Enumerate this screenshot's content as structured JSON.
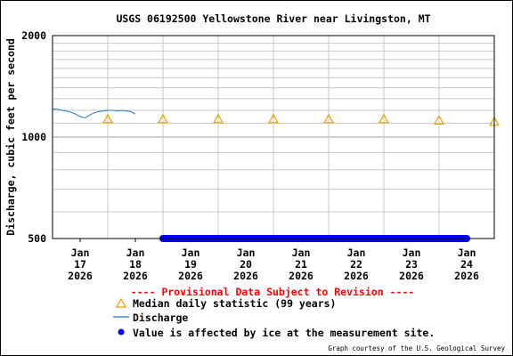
{
  "chart_data": {
    "type": "line",
    "title": "USGS 06192500 Yellowstone River near Livingston, MT",
    "xlabel": "",
    "ylabel": "Discharge, cubic feet per second",
    "yscale": "log",
    "ylim": [
      500,
      2000
    ],
    "yticks": [
      {
        "value": 500,
        "label": "500"
      },
      {
        "value": 1000,
        "label": "1000"
      },
      {
        "value": 2000,
        "label": "2000"
      }
    ],
    "xlim": [
      "2026-01-16 12:00",
      "2026-01-24 12:00"
    ],
    "xticks": [
      {
        "lines": [
          "Jan",
          "17",
          "2026"
        ]
      },
      {
        "lines": [
          "Jan",
          "18",
          "2026"
        ]
      },
      {
        "lines": [
          "Jan",
          "19",
          "2026"
        ]
      },
      {
        "lines": [
          "Jan",
          "20",
          "2026"
        ]
      },
      {
        "lines": [
          "Jan",
          "21",
          "2026"
        ]
      },
      {
        "lines": [
          "Jan",
          "22",
          "2026"
        ]
      },
      {
        "lines": [
          "Jan",
          "23",
          "2026"
        ]
      },
      {
        "lines": [
          "Jan",
          "24",
          "2026"
        ]
      }
    ],
    "grid": true,
    "series": [
      {
        "name": "Median daily statistic (99 years)",
        "kind": "marker-triangle",
        "color": "#e8a000",
        "points": [
          {
            "x": "2026-01-17",
            "y": 1130
          },
          {
            "x": "2026-01-18",
            "y": 1130
          },
          {
            "x": "2026-01-19",
            "y": 1130
          },
          {
            "x": "2026-01-20",
            "y": 1130
          },
          {
            "x": "2026-01-21",
            "y": 1130
          },
          {
            "x": "2026-01-22",
            "y": 1130
          },
          {
            "x": "2026-01-23",
            "y": 1120
          },
          {
            "x": "2026-01-24",
            "y": 1110
          }
        ]
      },
      {
        "name": "Discharge",
        "kind": "line",
        "color": "#1f78c8",
        "points": [
          {
            "x": "2026-01-16 12:00",
            "y": 1210
          },
          {
            "x": "2026-01-16 14:00",
            "y": 1210
          },
          {
            "x": "2026-01-16 16:00",
            "y": 1200
          },
          {
            "x": "2026-01-16 18:00",
            "y": 1195
          },
          {
            "x": "2026-01-16 20:00",
            "y": 1185
          },
          {
            "x": "2026-01-16 22:00",
            "y": 1170
          },
          {
            "x": "2026-01-17 00:00",
            "y": 1150
          },
          {
            "x": "2026-01-17 02:00",
            "y": 1140
          },
          {
            "x": "2026-01-17 04:00",
            "y": 1160
          },
          {
            "x": "2026-01-17 06:00",
            "y": 1180
          },
          {
            "x": "2026-01-17 08:00",
            "y": 1190
          },
          {
            "x": "2026-01-17 10:00",
            "y": 1195
          },
          {
            "x": "2026-01-17 12:00",
            "y": 1200
          },
          {
            "x": "2026-01-17 14:00",
            "y": 1200
          },
          {
            "x": "2026-01-17 16:00",
            "y": 1195
          },
          {
            "x": "2026-01-17 18:00",
            "y": 1200
          },
          {
            "x": "2026-01-17 20:00",
            "y": 1195
          },
          {
            "x": "2026-01-17 22:00",
            "y": 1190
          },
          {
            "x": "2026-01-18 00:00",
            "y": 1170
          }
        ]
      },
      {
        "name": "Value is affected by ice at the measurement site.",
        "kind": "band-dots",
        "color": "#0000ff",
        "from": "2026-01-18 12:00",
        "to": "2026-01-24 00:00",
        "y": 500
      }
    ],
    "provisional_note": "---- Provisional Data Subject to Revision ----",
    "legend": [
      {
        "symbol": "triangle",
        "label": "Median daily statistic (99 years)"
      },
      {
        "symbol": "line",
        "label": "Discharge"
      },
      {
        "symbol": "dot",
        "label": "Value is affected by ice at the measurement site."
      }
    ],
    "credit": "Graph courtesy of the U.S. Geological Survey"
  },
  "colors": {
    "title": "#000000",
    "provisional": "#ff0000",
    "grid": "#c8c8c8",
    "axis": "#000000"
  }
}
